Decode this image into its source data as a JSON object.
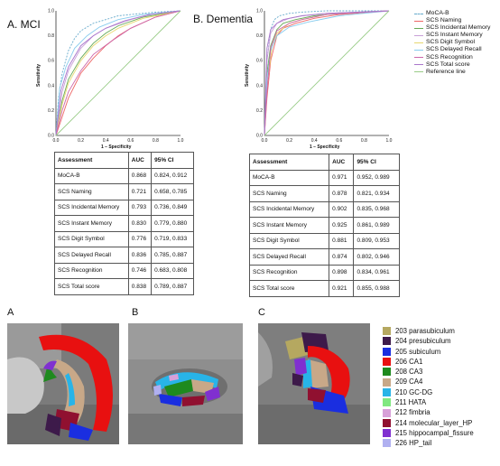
{
  "panels": {
    "a_label": "A. MCI",
    "b_label": "B. Dementia",
    "y_axis_label": "Sensitivity",
    "x_axis_label": "1 – Specificity",
    "ticks": [
      "0.0",
      "0.2",
      "0.4",
      "0.6",
      "0.8",
      "1.0"
    ]
  },
  "legend": [
    {
      "label": "MoCA-B",
      "color": "#66aacc",
      "dash": true
    },
    {
      "label": "SCS Naming",
      "color": "#ee6666"
    },
    {
      "label": "SCS Incidental Memory",
      "color": "#66aa55"
    },
    {
      "label": "SCS Instant Memory",
      "color": "#c8a0d8"
    },
    {
      "label": "SCS Digit Symbol",
      "color": "#e8d870"
    },
    {
      "label": "SCS Delayed Recall",
      "color": "#88ccee"
    },
    {
      "label": "SCS Recognition",
      "color": "#cc66aa"
    },
    {
      "label": "SCS Total score",
      "color": "#aa77cc"
    },
    {
      "label": "Reference line",
      "color": "#99cc88"
    }
  ],
  "tables": {
    "headers": [
      "Assessment",
      "AUC",
      "95% CI"
    ],
    "mci": [
      [
        "MoCA-B",
        "0.868",
        "0.824, 0.912"
      ],
      [
        "SCS Naming",
        "0.721",
        "0.658, 0.785"
      ],
      [
        "SCS Incidental Memory",
        "0.793",
        "0.736, 0.849"
      ],
      [
        "SCS Instant Memory",
        "0.830",
        "0.779, 0.880"
      ],
      [
        "SCS Digit Symbol",
        "0.776",
        "0.719, 0.833"
      ],
      [
        "SCS Delayed Recall",
        "0.836",
        "0.785, 0.887"
      ],
      [
        "SCS Recognition",
        "0.746",
        "0.683, 0.808"
      ],
      [
        "SCS Total score",
        "0.838",
        "0.789, 0.887"
      ]
    ],
    "dementia": [
      [
        "MoCA-B",
        "0.971",
        "0.952, 0.989"
      ],
      [
        "SCS Naming",
        "0.878",
        "0.821, 0.934"
      ],
      [
        "SCS Incidental Memory",
        "0.902",
        "0.835, 0.968"
      ],
      [
        "SCS Instant Memory",
        "0.925",
        "0.861, 0.989"
      ],
      [
        "SCS Digit Symbol",
        "0.881",
        "0.809, 0.953"
      ],
      [
        "SCS Delayed Recall",
        "0.874",
        "0.802, 0.946"
      ],
      [
        "SCS Recognition",
        "0.898",
        "0.834, 0.961"
      ],
      [
        "SCS Total score",
        "0.921",
        "0.855, 0.988"
      ]
    ]
  },
  "brain_panels": [
    "A",
    "B",
    "C"
  ],
  "segmentation_legend": [
    {
      "label": "203 parasubiculum",
      "color": "#b5a860"
    },
    {
      "label": "204 presubiculum",
      "color": "#3d1a4a"
    },
    {
      "label": "205 subiculum",
      "color": "#1a2ee0"
    },
    {
      "label": "206 CA1",
      "color": "#e81010"
    },
    {
      "label": "208 CA3",
      "color": "#1e8a1e"
    },
    {
      "label": "209 CA4",
      "color": "#c8a888"
    },
    {
      "label": "210 GC-DG",
      "color": "#28b4e8"
    },
    {
      "label": "211 HATA",
      "color": "#80e880"
    },
    {
      "label": "212 fimbria",
      "color": "#d8a0d8"
    },
    {
      "label": "214 molecular_layer_HP",
      "color": "#901030"
    },
    {
      "label": "215 hippocampal_fissure",
      "color": "#8030d0"
    },
    {
      "label": "226 HP_tail",
      "color": "#b0b0f0"
    }
  ],
  "chart_data": [
    {
      "type": "line",
      "title": "A. MCI",
      "xlabel": "1 – Specificity",
      "ylabel": "Sensitivity",
      "xlim": [
        0,
        1
      ],
      "ylim": [
        0,
        1
      ],
      "series": [
        {
          "name": "MoCA-B",
          "x": [
            0,
            0.02,
            0.05,
            0.1,
            0.15,
            0.2,
            0.3,
            0.4,
            0.5,
            0.6,
            0.8,
            1
          ],
          "y": [
            0,
            0.3,
            0.5,
            0.68,
            0.78,
            0.84,
            0.9,
            0.93,
            0.96,
            0.97,
            0.99,
            1
          ]
        },
        {
          "name": "SCS Naming",
          "x": [
            0,
            0.05,
            0.1,
            0.2,
            0.3,
            0.4,
            0.5,
            0.6,
            0.8,
            1
          ],
          "y": [
            0,
            0.15,
            0.3,
            0.5,
            0.62,
            0.72,
            0.8,
            0.86,
            0.95,
            1
          ]
        },
        {
          "name": "SCS Incidental Memory",
          "x": [
            0,
            0.05,
            0.1,
            0.2,
            0.3,
            0.4,
            0.5,
            0.7,
            1
          ],
          "y": [
            0,
            0.28,
            0.45,
            0.62,
            0.74,
            0.82,
            0.88,
            0.95,
            1
          ]
        },
        {
          "name": "SCS Instant Memory",
          "x": [
            0,
            0.05,
            0.1,
            0.2,
            0.3,
            0.4,
            0.6,
            0.8,
            1
          ],
          "y": [
            0,
            0.35,
            0.52,
            0.7,
            0.8,
            0.86,
            0.93,
            0.98,
            1
          ]
        },
        {
          "name": "SCS Digit Symbol",
          "x": [
            0,
            0.05,
            0.1,
            0.2,
            0.3,
            0.4,
            0.5,
            0.7,
            1
          ],
          "y": [
            0,
            0.25,
            0.42,
            0.6,
            0.72,
            0.8,
            0.86,
            0.94,
            1
          ]
        },
        {
          "name": "SCS Delayed Recall",
          "x": [
            0,
            0.03,
            0.08,
            0.15,
            0.25,
            0.35,
            0.5,
            0.7,
            1
          ],
          "y": [
            0,
            0.38,
            0.55,
            0.7,
            0.8,
            0.87,
            0.93,
            0.97,
            1
          ]
        },
        {
          "name": "SCS Recognition",
          "x": [
            0,
            0.05,
            0.1,
            0.2,
            0.3,
            0.45,
            0.6,
            0.8,
            1
          ],
          "y": [
            0,
            0.2,
            0.35,
            0.52,
            0.65,
            0.76,
            0.86,
            0.95,
            1
          ]
        },
        {
          "name": "SCS Total score",
          "x": [
            0,
            0.04,
            0.1,
            0.2,
            0.3,
            0.4,
            0.55,
            0.75,
            1
          ],
          "y": [
            0,
            0.36,
            0.55,
            0.72,
            0.8,
            0.86,
            0.92,
            0.97,
            1
          ]
        },
        {
          "name": "Reference line",
          "x": [
            0,
            1
          ],
          "y": [
            0,
            1
          ]
        }
      ]
    },
    {
      "type": "line",
      "title": "B. Dementia",
      "xlabel": "1 – Specificity",
      "ylabel": "Sensitivity",
      "xlim": [
        0,
        1
      ],
      "ylim": [
        0,
        1
      ],
      "series": [
        {
          "name": "MoCA-B",
          "x": [
            0,
            0.02,
            0.05,
            0.08,
            0.12,
            0.2,
            0.3,
            0.5,
            1
          ],
          "y": [
            0,
            0.6,
            0.85,
            0.93,
            0.96,
            0.98,
            0.99,
            1,
            1
          ]
        },
        {
          "name": "SCS Naming",
          "x": [
            0,
            0.02,
            0.05,
            0.1,
            0.15,
            0.25,
            0.4,
            0.6,
            1
          ],
          "y": [
            0,
            0.3,
            0.6,
            0.8,
            0.86,
            0.9,
            0.94,
            0.97,
            1
          ]
        },
        {
          "name": "SCS Incidental Memory",
          "x": [
            0,
            0.02,
            0.05,
            0.1,
            0.15,
            0.25,
            0.4,
            0.6,
            1
          ],
          "y": [
            0,
            0.5,
            0.72,
            0.85,
            0.9,
            0.93,
            0.96,
            0.98,
            1
          ]
        },
        {
          "name": "SCS Instant Memory",
          "x": [
            0,
            0.02,
            0.05,
            0.1,
            0.2,
            0.3,
            0.5,
            1
          ],
          "y": [
            0,
            0.6,
            0.82,
            0.9,
            0.94,
            0.96,
            0.98,
            1
          ]
        },
        {
          "name": "SCS Digit Symbol",
          "x": [
            0,
            0.02,
            0.06,
            0.1,
            0.2,
            0.3,
            0.5,
            1
          ],
          "y": [
            0,
            0.4,
            0.7,
            0.82,
            0.9,
            0.93,
            0.97,
            1
          ]
        },
        {
          "name": "SCS Delayed Recall",
          "x": [
            0,
            0.02,
            0.05,
            0.1,
            0.2,
            0.35,
            0.6,
            1
          ],
          "y": [
            0,
            0.45,
            0.68,
            0.8,
            0.87,
            0.91,
            0.96,
            1
          ]
        },
        {
          "name": "SCS Recognition",
          "x": [
            0,
            0.02,
            0.05,
            0.1,
            0.2,
            0.3,
            0.5,
            1
          ],
          "y": [
            0,
            0.35,
            0.7,
            0.84,
            0.9,
            0.93,
            0.97,
            1
          ]
        },
        {
          "name": "SCS Total score",
          "x": [
            0,
            0.02,
            0.05,
            0.1,
            0.15,
            0.3,
            0.5,
            1
          ],
          "y": [
            0,
            0.7,
            0.85,
            0.9,
            0.93,
            0.96,
            0.98,
            1
          ]
        },
        {
          "name": "Reference line",
          "x": [
            0,
            1
          ],
          "y": [
            0,
            1
          ]
        }
      ]
    }
  ]
}
